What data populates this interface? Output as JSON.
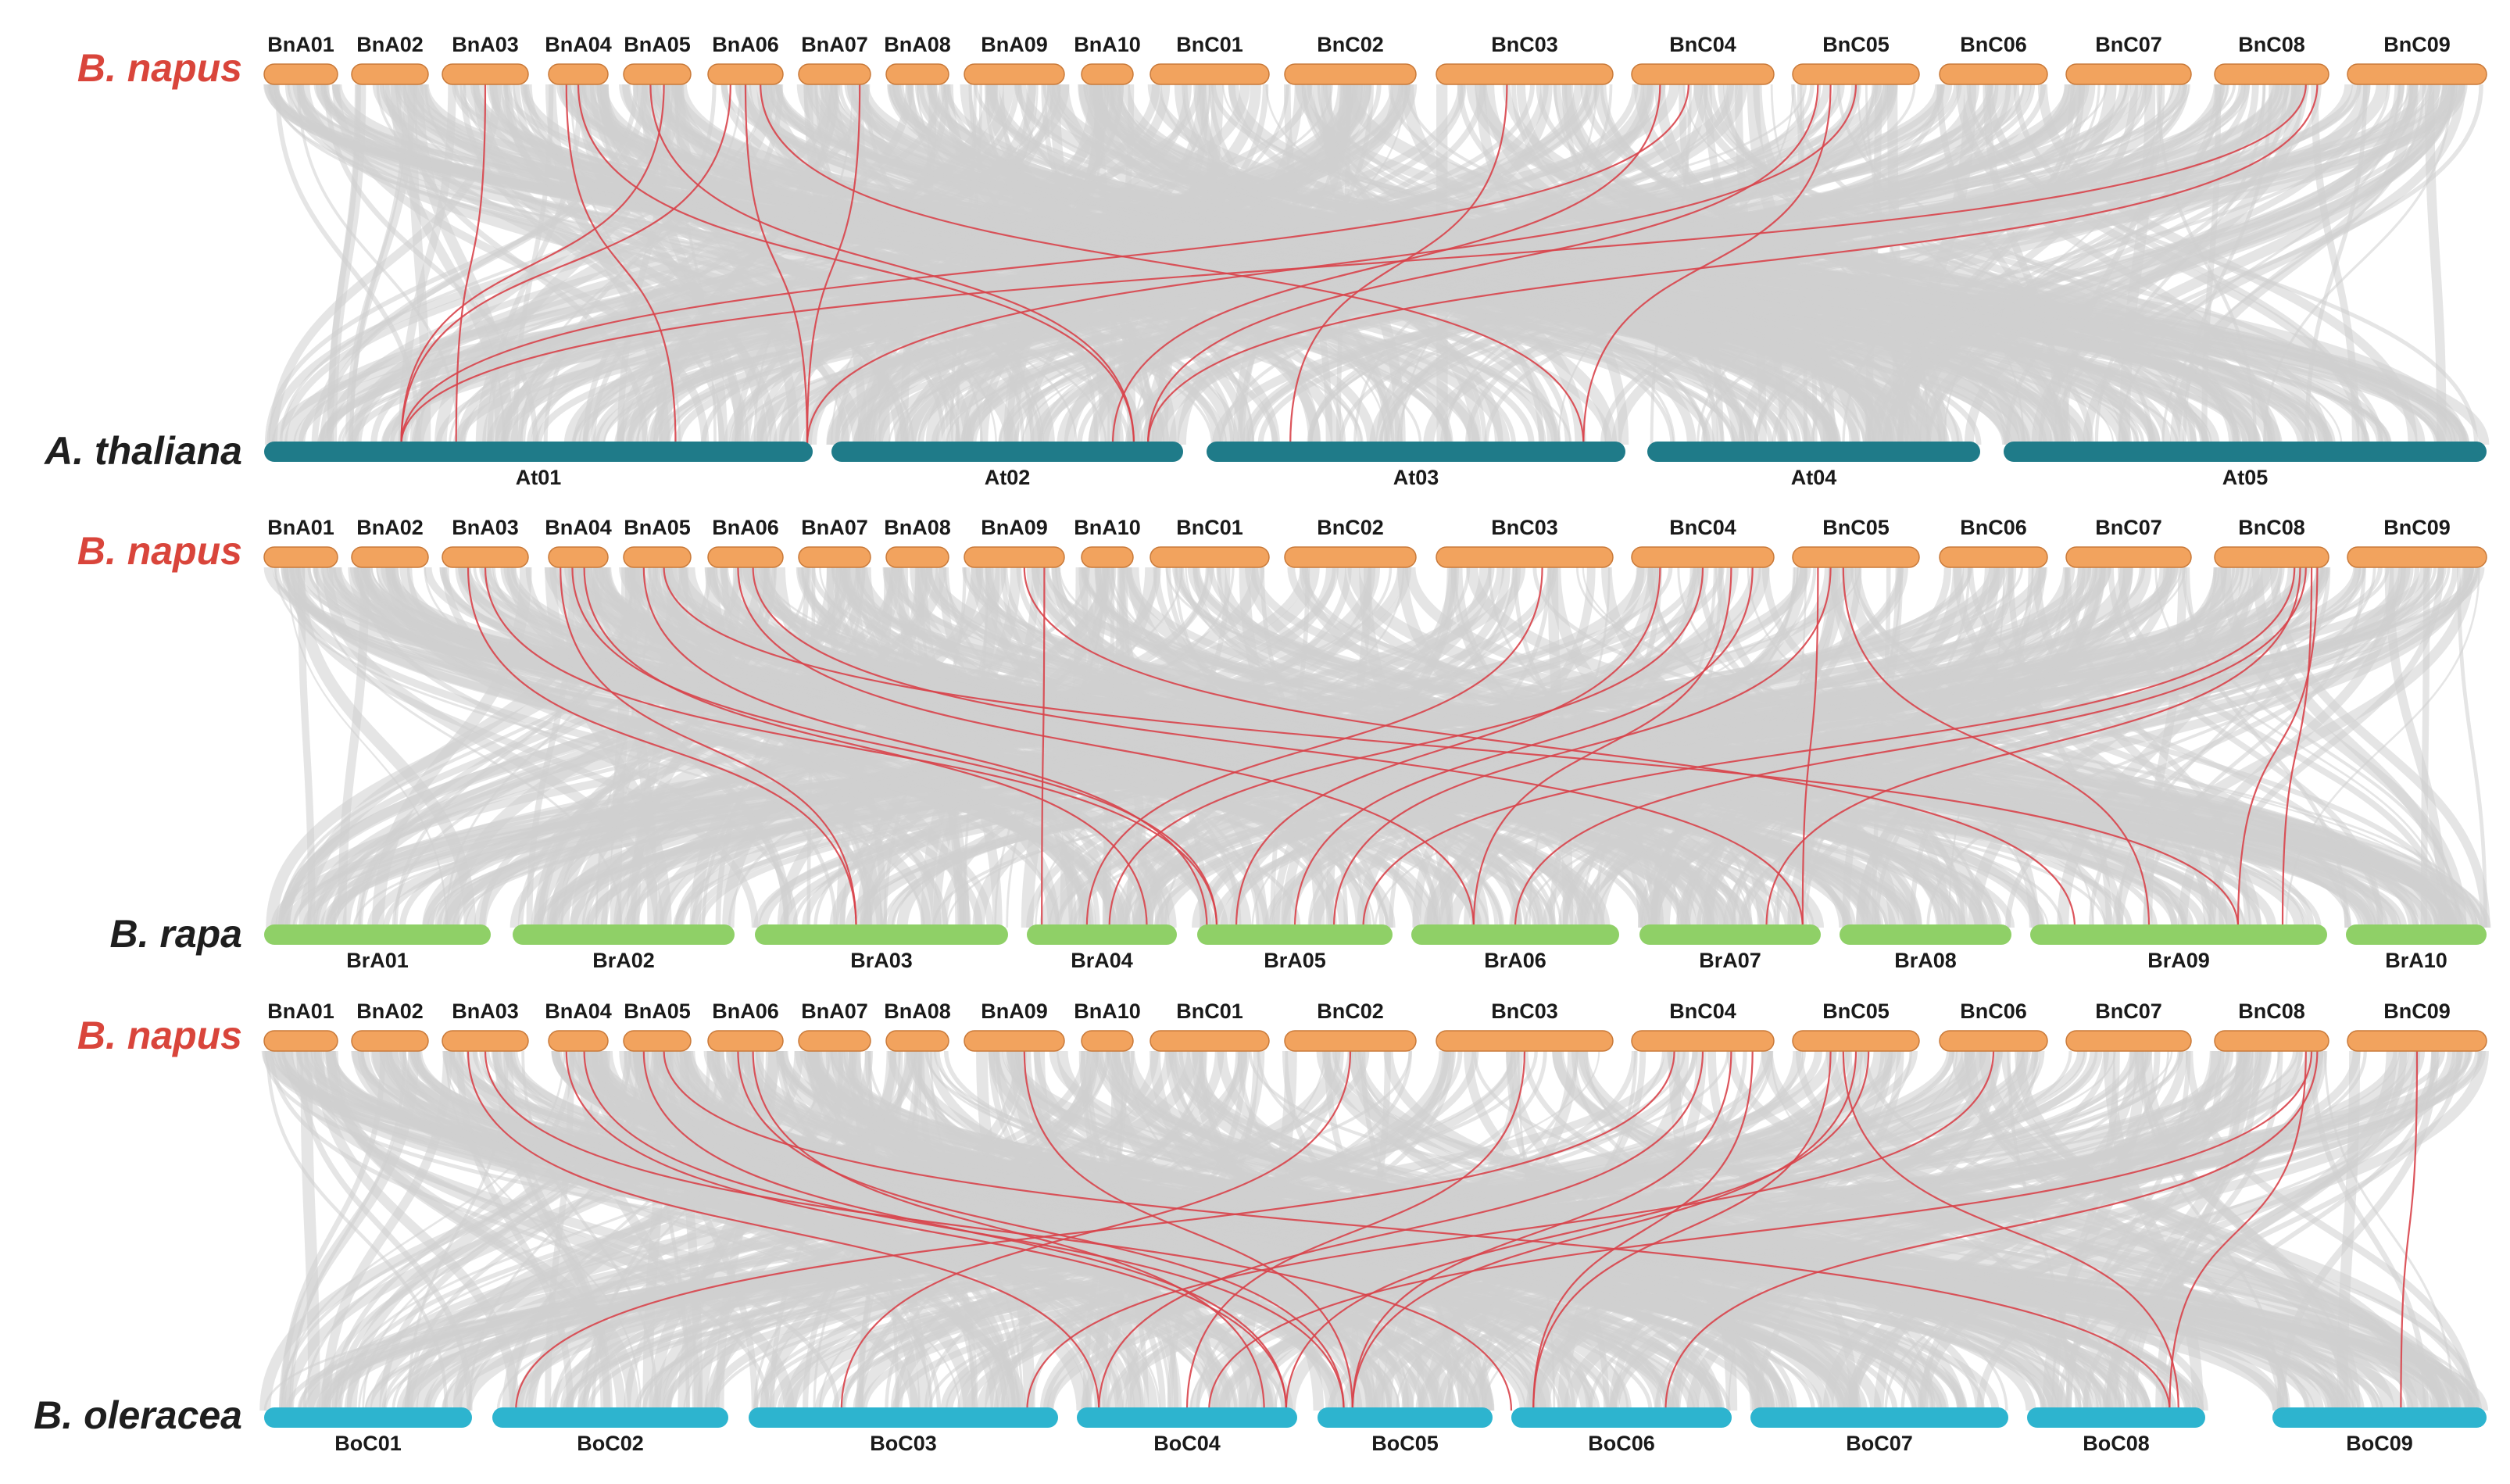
{
  "figure": {
    "panels": [
      {
        "id": "panel-athaliana",
        "top_species": "B. napus",
        "bottom_species": "A. thaliana",
        "top_chromosomes": [
          "BnA01",
          "BnA02",
          "BnA03",
          "BnA04",
          "BnA05",
          "BnA06",
          "BnA07",
          "BnA08",
          "BnA09",
          "BnA10",
          "BnC01",
          "BnC02",
          "BnC03",
          "BnC04",
          "BnC05",
          "BnC06",
          "BnC07",
          "BnC08",
          "BnC09"
        ],
        "bottom_chromosomes": [
          "At01",
          "At02",
          "At03",
          "At04",
          "At05"
        ],
        "links": [
          [
            "BnA04",
            0.3,
            "At01",
            0.75
          ],
          [
            "BnA05",
            0.6,
            "At01",
            0.25
          ],
          [
            "BnA06",
            0.3,
            "At01",
            0.25
          ],
          [
            "BnA06",
            0.5,
            "At01",
            0.99
          ],
          [
            "BnA07",
            0.85,
            "At01",
            0.99
          ],
          [
            "BnA05",
            0.4,
            "At02",
            0.86
          ],
          [
            "BnA04",
            0.5,
            "At02",
            0.86
          ],
          [
            "BnA06",
            0.7,
            "At03",
            0.9
          ],
          [
            "BnC03",
            0.4,
            "At03",
            0.2
          ],
          [
            "BnC04",
            0.2,
            "At02",
            0.8
          ],
          [
            "BnC04",
            0.4,
            "At01",
            0.25
          ],
          [
            "BnC05",
            0.2,
            "At02",
            0.9
          ],
          [
            "BnC05",
            0.3,
            "At03",
            0.9
          ],
          [
            "BnC05",
            0.5,
            "At01",
            0.99
          ],
          [
            "BnC08",
            0.8,
            "At01",
            0.25
          ],
          [
            "BnC08",
            0.9,
            "At02",
            0.9
          ],
          [
            "BnA03",
            0.5,
            "At01",
            0.35
          ]
        ]
      },
      {
        "id": "panel-brapa",
        "top_species": "B. napus",
        "bottom_species": "B. rapa",
        "top_chromosomes": [
          "BnA01",
          "BnA02",
          "BnA03",
          "BnA04",
          "BnA05",
          "BnA06",
          "BnA07",
          "BnA08",
          "BnA09",
          "BnA10",
          "BnC01",
          "BnC02",
          "BnC03",
          "BnC04",
          "BnC05",
          "BnC06",
          "BnC07",
          "BnC08",
          "BnC09"
        ],
        "bottom_chromosomes": [
          "BrA01",
          "BrA02",
          "BrA03",
          "BrA04",
          "BrA05",
          "BrA06",
          "BrA07",
          "BrA08",
          "BrA09",
          "BrA10"
        ],
        "links": [
          [
            "BnA03",
            0.3,
            "BrA03",
            0.4
          ],
          [
            "BnA03",
            0.5,
            "BrA05",
            0.1
          ],
          [
            "BnA04",
            0.2,
            "BrA03",
            0.4
          ],
          [
            "BnA04",
            0.4,
            "BrA05",
            0.1
          ],
          [
            "BnA04",
            0.6,
            "BrA04",
            0.8
          ],
          [
            "BnA05",
            0.3,
            "BrA05",
            0.05
          ],
          [
            "BnA05",
            0.6,
            "BrA09",
            0.7
          ],
          [
            "BnA06",
            0.4,
            "BrA06",
            0.3
          ],
          [
            "BnA06",
            0.6,
            "BrA07",
            0.9
          ],
          [
            "BnA09",
            0.8,
            "BrA04",
            0.1
          ],
          [
            "BnA09",
            0.6,
            "BrA09",
            0.15
          ],
          [
            "BnC03",
            0.6,
            "BrA04",
            0.4
          ],
          [
            "BnC04",
            0.2,
            "BrA05",
            0.2
          ],
          [
            "BnC04",
            0.5,
            "BrA04",
            0.55
          ],
          [
            "BnC04",
            0.7,
            "BrA06",
            0.3
          ],
          [
            "BnC04",
            0.85,
            "BrA05",
            0.5
          ],
          [
            "BnC05",
            0.2,
            "BrA07",
            0.9
          ],
          [
            "BnC05",
            0.3,
            "BrA05",
            0.7
          ],
          [
            "BnC05",
            0.4,
            "BrA09",
            0.4
          ],
          [
            "BnC08",
            0.85,
            "BrA09",
            0.85
          ],
          [
            "BnC08",
            0.9,
            "BrA09",
            0.7
          ],
          [
            "BnC08",
            0.8,
            "BrA06",
            0.5
          ],
          [
            "BnC08",
            0.7,
            "BrA05",
            0.85
          ],
          [
            "BnC08",
            0.75,
            "BrA07",
            0.7
          ]
        ]
      },
      {
        "id": "panel-boleracea",
        "top_species": "B. napus",
        "bottom_species": "B. oleracea",
        "top_chromosomes": [
          "BnA01",
          "BnA02",
          "BnA03",
          "BnA04",
          "BnA05",
          "BnA06",
          "BnA07",
          "BnA08",
          "BnA09",
          "BnA10",
          "BnC01",
          "BnC02",
          "BnC03",
          "BnC04",
          "BnC05",
          "BnC06",
          "BnC07",
          "BnC08",
          "BnC09"
        ],
        "bottom_chromosomes": [
          "BoC01",
          "BoC02",
          "BoC03",
          "BoC04",
          "BoC05",
          "BoC06",
          "BoC07",
          "BoC08",
          "BoC09"
        ],
        "links": [
          [
            "BnA03",
            0.3,
            "BoC04",
            0.1
          ],
          [
            "BnA03",
            0.5,
            "BoC06",
            0.0
          ],
          [
            "BnA04",
            0.3,
            "BoC04",
            0.95
          ],
          [
            "BnA04",
            0.6,
            "BoC05",
            0.15
          ],
          [
            "BnA05",
            0.3,
            "BoC04",
            0.95
          ],
          [
            "BnA05",
            0.6,
            "BoC08",
            0.8
          ],
          [
            "BnA06",
            0.4,
            "BoC05",
            0.15
          ],
          [
            "BnA06",
            0.6,
            "BoC04",
            0.85
          ],
          [
            "BnA09",
            0.6,
            "BoC05",
            0.2
          ],
          [
            "BnC02",
            0.5,
            "BoC03",
            0.3
          ],
          [
            "BnC03",
            0.5,
            "BoC04",
            0.5
          ],
          [
            "BnC04",
            0.3,
            "BoC02",
            0.1
          ],
          [
            "BnC04",
            0.5,
            "BoC04",
            0.1
          ],
          [
            "BnC04",
            0.7,
            "BoC05",
            0.2
          ],
          [
            "BnC04",
            0.85,
            "BoC06",
            0.1
          ],
          [
            "BnC05",
            0.3,
            "BoC06",
            0.1
          ],
          [
            "BnC05",
            0.5,
            "BoC05",
            0.2
          ],
          [
            "BnC05",
            0.6,
            "BoC04",
            0.95
          ],
          [
            "BnC05",
            0.4,
            "BoC08",
            0.85
          ],
          [
            "BnC08",
            0.8,
            "BoC08",
            0.8
          ],
          [
            "BnC08",
            0.9,
            "BoC06",
            0.7
          ],
          [
            "BnC08",
            0.85,
            "BoC04",
            0.6
          ],
          [
            "BnC09",
            0.5,
            "BoC09",
            0.6
          ],
          [
            "BnC06",
            0.5,
            "BoC03",
            0.9
          ]
        ]
      }
    ],
    "colors": {
      "napus_chr": "#f2a35e",
      "napus_stroke": "#c97a3a",
      "thaliana_chr": "#1f7b89",
      "rapa_chr": "#8fd067",
      "oleracea_chr": "#2db4cf",
      "background_link": "#d3d3d3",
      "highlight_link": "#d8434a",
      "napus_label": "#d9453b",
      "other_label": "#1e1e1e"
    }
  }
}
